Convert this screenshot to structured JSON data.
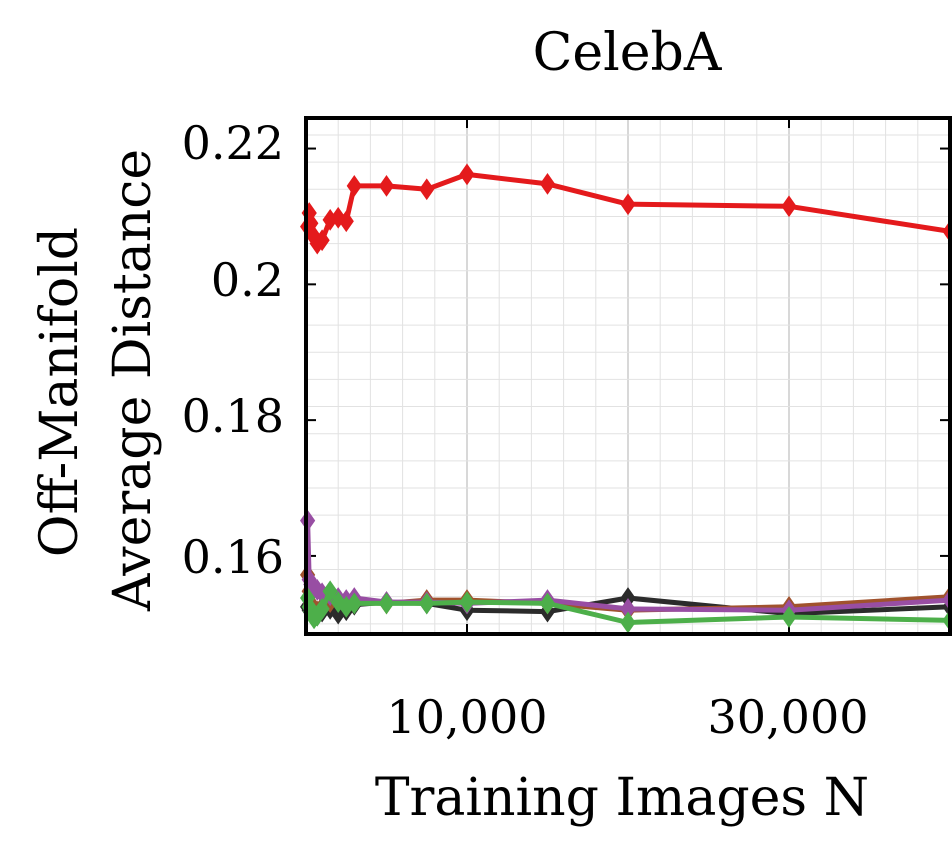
{
  "chart_data": {
    "type": "line",
    "title": "CelebA",
    "xlabel": "Training Images N",
    "ylabel_line1": "Off-Manifold",
    "ylabel_line2": "Average Distance",
    "xlim": [
      0,
      40000
    ],
    "ylim": [
      0.1485,
      0.2245
    ],
    "x_ticks": [
      10000,
      30000
    ],
    "x_tick_labels": [
      "10,000",
      "30,000"
    ],
    "y_ticks": [
      0.16,
      0.18,
      0.2,
      0.22
    ],
    "y_tick_labels": [
      "0.16",
      "0.18",
      "0.2",
      "0.22"
    ],
    "grid": true,
    "colors": {
      "red": "#e41a1c",
      "black": "#2b2b2b",
      "brown": "#a0522d",
      "purple": "#984ea3",
      "green": "#4daf4a"
    },
    "series": [
      {
        "color": "#2b2b2b",
        "x": [
          100,
          200,
          300,
          500,
          700,
          1000,
          1500,
          2000,
          2500,
          3000,
          5000,
          7500,
          10000,
          15000,
          20000,
          30000,
          40000
        ],
        "y": [
          0.1525,
          0.152,
          0.1518,
          0.1515,
          0.1512,
          0.1518,
          0.1522,
          0.1515,
          0.152,
          0.1528,
          0.1532,
          0.153,
          0.152,
          0.1518,
          0.1538,
          0.1515,
          0.1525
        ]
      },
      {
        "color": "#a0522d",
        "x": [
          100,
          200,
          300,
          500,
          700,
          1000,
          1500,
          2000,
          2500,
          3000,
          5000,
          7500,
          10000,
          15000,
          20000,
          30000,
          40000
        ],
        "y": [
          0.1572,
          0.1548,
          0.153,
          0.1522,
          0.1518,
          0.1525,
          0.1532,
          0.1535,
          0.153,
          0.1532,
          0.153,
          0.1535,
          0.1535,
          0.153,
          0.152,
          0.1525,
          0.154
        ]
      },
      {
        "color": "#984ea3",
        "x": [
          100,
          200,
          300,
          500,
          700,
          1000,
          1500,
          2000,
          2500,
          3000,
          5000,
          7500,
          10000,
          15000,
          20000,
          30000,
          40000
        ],
        "y": [
          0.1652,
          0.1565,
          0.1558,
          0.1552,
          0.155,
          0.1545,
          0.1542,
          0.1538,
          0.1535,
          0.1538,
          0.1532,
          0.1532,
          0.153,
          0.1535,
          0.1522,
          0.152,
          0.1535
        ]
      },
      {
        "color": "#4daf4a",
        "x": [
          100,
          200,
          300,
          500,
          700,
          1000,
          1500,
          2000,
          2500,
          3000,
          5000,
          7500,
          10000,
          15000,
          20000,
          30000,
          40000
        ],
        "y": [
          0.1538,
          0.1525,
          0.1518,
          0.1508,
          0.1512,
          0.1522,
          0.1548,
          0.1532,
          0.1525,
          0.153,
          0.153,
          0.153,
          0.1532,
          0.153,
          0.1502,
          0.151,
          0.1505
        ]
      },
      {
        "color": "#e41a1c",
        "x": [
          100,
          200,
          300,
          500,
          700,
          1000,
          1500,
          2000,
          2500,
          3000,
          5000,
          7500,
          10000,
          15000,
          20000,
          30000,
          40000
        ],
        "y": [
          0.2085,
          0.2105,
          0.209,
          0.207,
          0.206,
          0.2065,
          0.2095,
          0.2098,
          0.2093,
          0.2145,
          0.2145,
          0.214,
          0.2162,
          0.2148,
          0.2118,
          0.2115,
          0.2078
        ]
      }
    ]
  }
}
